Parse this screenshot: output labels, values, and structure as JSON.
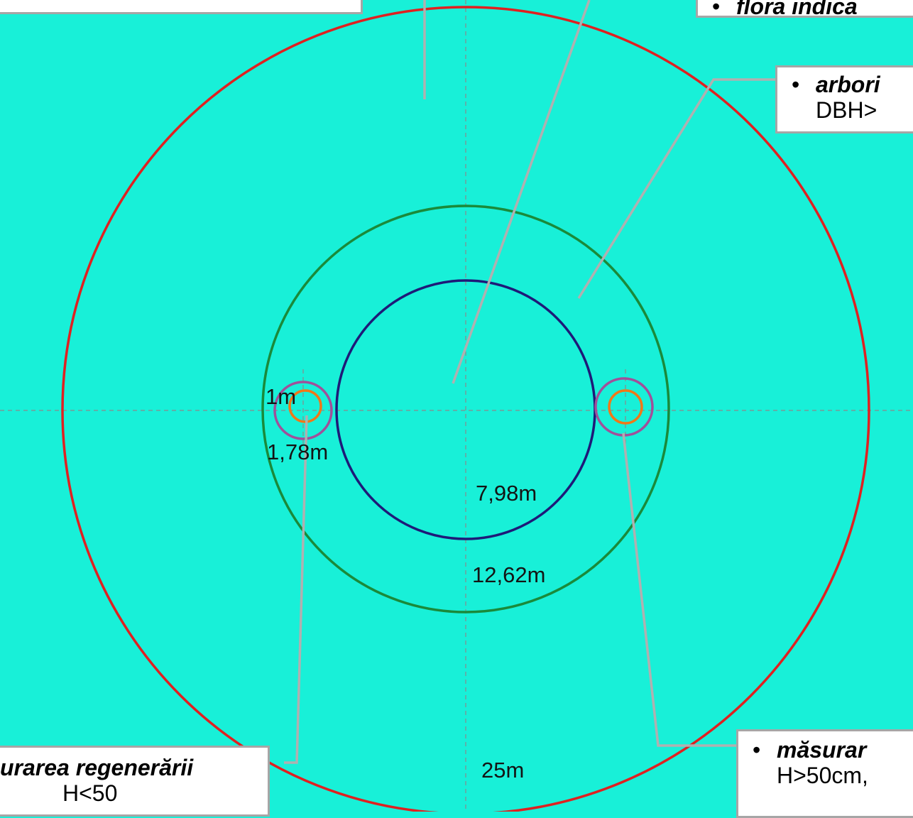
{
  "colors": {
    "background": "#18F0D8",
    "circle_25m": "#E02020",
    "circle_12_62m": "#1A8A3A",
    "circle_7_98m": "#1E1A78",
    "circle_1_78m": "#A0509A",
    "circle_1m": "#F07818",
    "axis_dash": "#8a8a8a",
    "leader": "#b0b0b0"
  },
  "circles": [
    {
      "radius": "25m"
    },
    {
      "radius": "12,62m"
    },
    {
      "radius": "7,98m"
    },
    {
      "radius": "1,78m"
    },
    {
      "radius": "1m"
    }
  ],
  "labels": {
    "r_1m": "1m",
    "r_1_78m": "1,78m",
    "r_7_98m": "7,98m",
    "r_12_62m": "12,62m",
    "r_25m": "25m"
  },
  "callouts": {
    "top_right": {
      "bullet": "•",
      "text": "flora indica"
    },
    "right_mid": {
      "bullet": "•",
      "text": "arbori",
      "line2": "DBH>"
    },
    "bottom_left": {
      "text": "urarea regenerării",
      "line2": "H<50"
    },
    "bottom_right": {
      "bullet": "•",
      "text": "măsurar",
      "line2": "H>50cm,"
    }
  }
}
